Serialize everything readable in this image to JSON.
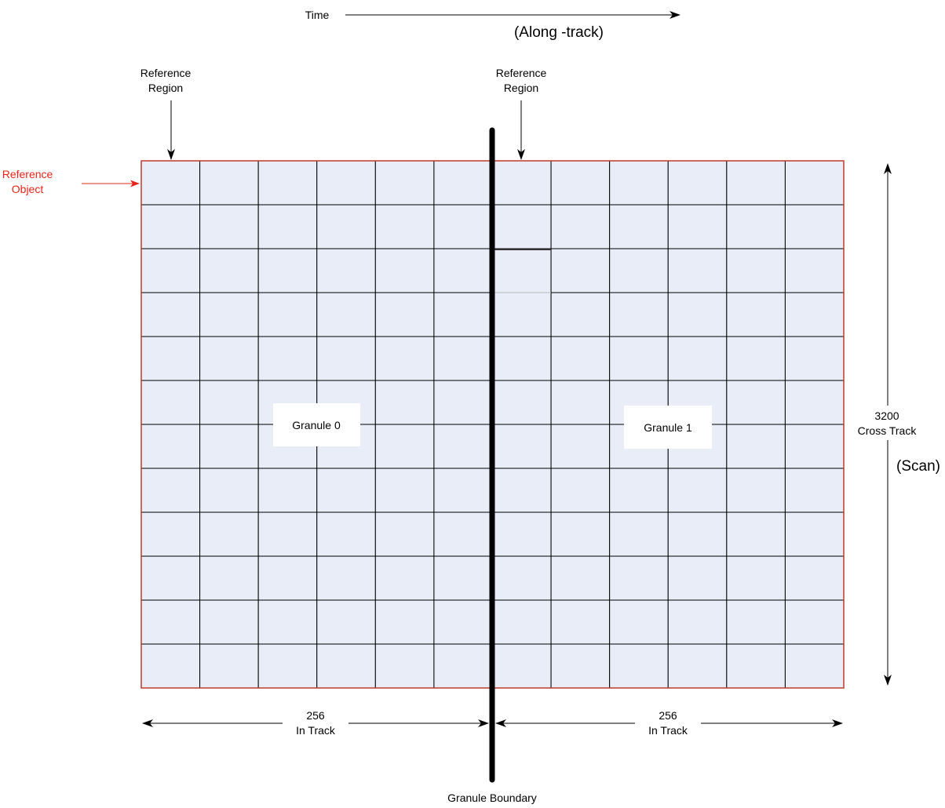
{
  "time": {
    "label": "Time",
    "subtitle": "(Along -track)"
  },
  "reference_region_left": {
    "line1": "Reference",
    "line2": "Region"
  },
  "reference_region_right": {
    "line1": "Reference",
    "line2": "Region"
  },
  "reference_object": {
    "line1": "Reference",
    "line2": "Object"
  },
  "granules": [
    {
      "label": "Granule 0"
    },
    {
      "label": "Granule 1"
    }
  ],
  "cross_track": {
    "value": "3200",
    "label": "Cross Track",
    "scan": "(Scan)"
  },
  "in_track_left": {
    "value": "256",
    "label": "In Track"
  },
  "in_track_right": {
    "value": "256",
    "label": "In Track"
  },
  "granule_boundary": {
    "label": "Granule Boundary"
  },
  "grid": {
    "columns": 12,
    "rows": 12
  },
  "colors": {
    "cell_fill": "#e8edf7",
    "grid_border": "#c0392b",
    "reference_object": "#e8241a",
    "lines": "#000000"
  }
}
